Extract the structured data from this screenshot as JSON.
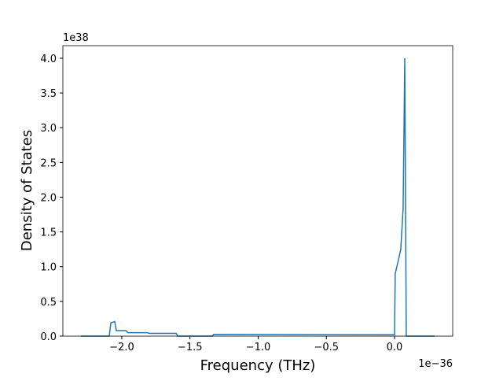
{
  "chart_data": {
    "type": "line",
    "xlabel": "Frequency (THz)",
    "ylabel": "Density of States",
    "x_offset_label": "1e−36",
    "y_offset_label": "1e38",
    "color": "#1f77b4",
    "x": [
      -2.299,
      -2.092,
      -2.08,
      -2.052,
      -2.04,
      -1.97,
      -1.954,
      -1.816,
      -1.798,
      -1.602,
      -1.59,
      -1.337,
      -1.326,
      -0.012,
      0.0,
      0.005,
      0.023,
      0.046,
      0.063,
      0.075,
      0.086,
      0.294
    ],
    "values": [
      0,
      0,
      0.19,
      0.21,
      0.08,
      0.08,
      0.05,
      0.05,
      0.04,
      0.04,
      0,
      0,
      0.025,
      0.02,
      0.02,
      0.9,
      1.05,
      1.25,
      1.85,
      4.0,
      0,
      0
    ],
    "xlim": [
      -2.432,
      0.4265
    ],
    "ylim": [
      0,
      4.181
    ],
    "xticks": [
      {
        "value": -2,
        "label": "−2.0"
      },
      {
        "value": -1.5,
        "label": "−1.5"
      },
      {
        "value": -1,
        "label": "−1.0"
      },
      {
        "value": -0.5,
        "label": "−0.5"
      },
      {
        "value": 0,
        "label": "0.0"
      }
    ],
    "yticks": [
      {
        "value": 0,
        "label": "0.0"
      },
      0.5,
      {
        "value": 1,
        "label": "1.0"
      },
      1.5,
      {
        "value": 2,
        "label": "2.0"
      },
      2.5,
      {
        "value": 3,
        "label": "3.0"
      },
      3.5,
      {
        "value": 4,
        "label": "4.0"
      }
    ]
  }
}
